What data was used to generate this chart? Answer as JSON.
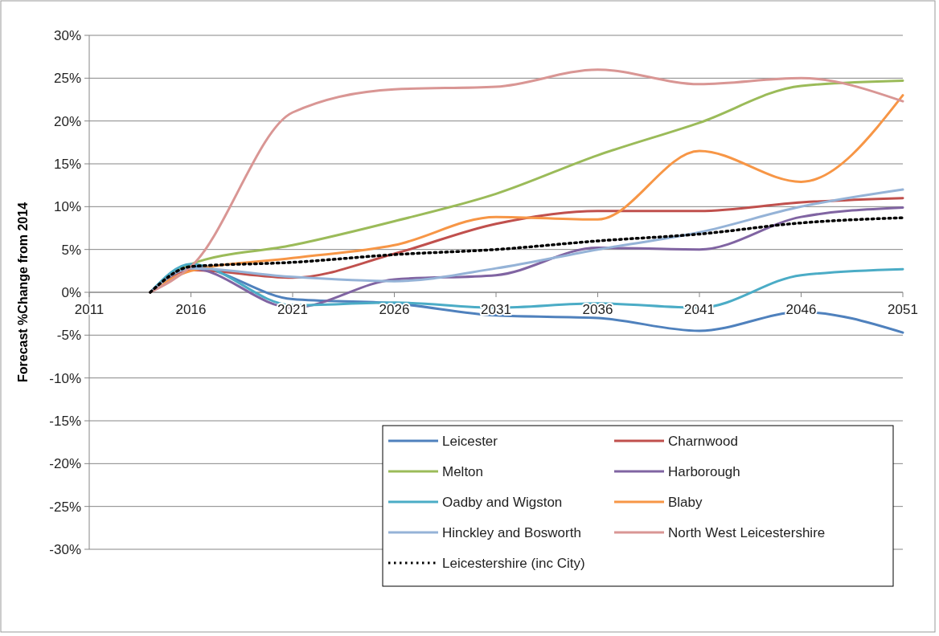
{
  "chart_data": {
    "type": "line",
    "ylabel": "Forecast %Change from 2014",
    "x": [
      2014,
      2016,
      2021,
      2026,
      2031,
      2036,
      2041,
      2046,
      2051
    ],
    "series": [
      {
        "name": "Leicester",
        "color": "#4f81bd",
        "values": [
          0,
          3,
          -0.8,
          -1.3,
          -2.7,
          -3,
          -4.5,
          -2.3,
          -4.7
        ]
      },
      {
        "name": "Charnwood",
        "color": "#c0504d",
        "values": [
          0,
          2.6,
          1.7,
          4.5,
          8,
          9.5,
          9.5,
          10.5,
          11
        ]
      },
      {
        "name": "Melton",
        "color": "#9bbb59",
        "values": [
          0,
          3.3,
          5.5,
          8.3,
          11.5,
          16,
          19.8,
          24.1,
          24.7
        ]
      },
      {
        "name": "Harborough",
        "color": "#8064a2",
        "values": [
          0,
          2.8,
          -1.8,
          1.5,
          2,
          5.2,
          5,
          8.8,
          9.9
        ]
      },
      {
        "name": "Oadby and Wigston",
        "color": "#4bacc6",
        "values": [
          0,
          3.3,
          -1.5,
          -1.2,
          -1.8,
          -1.3,
          -1.8,
          2,
          2.7
        ]
      },
      {
        "name": "Blaby",
        "color": "#f79646",
        "values": [
          0,
          2.5,
          4,
          5.5,
          8.8,
          8.5,
          16.5,
          12.9,
          23
        ]
      },
      {
        "name": "Hinckley and Bosworth",
        "color": "#95b3d7",
        "values": [
          0,
          2.8,
          1.8,
          1.3,
          2.8,
          5,
          7,
          10,
          12
        ]
      },
      {
        "name": "North West Leicestershire",
        "color": "#d99694",
        "values": [
          0,
          3,
          21,
          23.7,
          24,
          26,
          24.3,
          25,
          22.3
        ]
      },
      {
        "name": "Leicestershire (inc City)",
        "color": "#000000",
        "line_style": "dotted",
        "values": [
          0,
          3,
          3.5,
          4.4,
          5,
          6,
          6.8,
          8.1,
          8.7
        ]
      }
    ],
    "xlim": [
      2011,
      2051
    ],
    "xticks": [
      2011,
      2016,
      2021,
      2026,
      2031,
      2036,
      2041,
      2046,
      2051
    ],
    "ylim": [
      -30,
      30
    ],
    "yticks": [
      {
        "value": -30,
        "label": "-30%"
      },
      {
        "value": -25,
        "label": "-25%"
      },
      {
        "value": -20,
        "label": "-20%"
      },
      {
        "value": -15,
        "label": "-15%"
      },
      {
        "value": -10,
        "label": "-10%"
      },
      {
        "value": -5,
        "label": "-5%"
      },
      {
        "value": 0,
        "label": "0%"
      },
      {
        "value": 5,
        "label": "5%"
      },
      {
        "value": 10,
        "label": "10%"
      },
      {
        "value": 15,
        "label": "15%"
      },
      {
        "value": 20,
        "label": "20%"
      },
      {
        "value": 25,
        "label": "25%"
      },
      {
        "value": 30,
        "label": "30%"
      }
    ],
    "grid": "y",
    "legend": "bottom right",
    "line_style": "solid"
  }
}
